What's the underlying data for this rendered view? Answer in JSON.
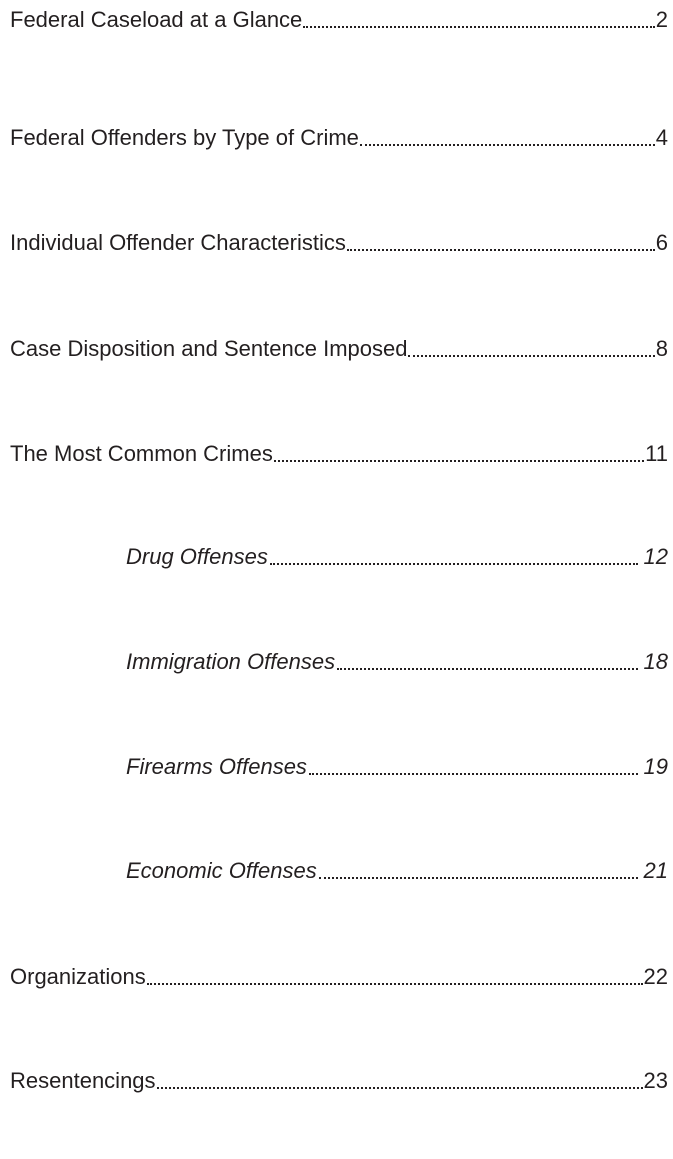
{
  "entries": [
    {
      "title": "Federal Caseload at a Glance",
      "page": 2
    },
    {
      "title": "Federal Offenders by Type of Crime",
      "page": 4
    },
    {
      "title": "Individual Offender Characteristics",
      "page": 6
    },
    {
      "title": "Case Disposition and Sentence Imposed",
      "page": 8
    },
    {
      "title": "The Most Common Crimes",
      "page": 11,
      "subentries": [
        {
          "title": "Drug Offenses",
          "page": 12
        },
        {
          "title": "Immigration Offenses",
          "page": 18
        },
        {
          "title": "Firearms Offenses",
          "page": 19
        },
        {
          "title": "Economic Offenses",
          "page": 21
        }
      ]
    },
    {
      "title": "Organizations",
      "page": 22
    },
    {
      "title": "Resentencings",
      "page": 23
    }
  ]
}
